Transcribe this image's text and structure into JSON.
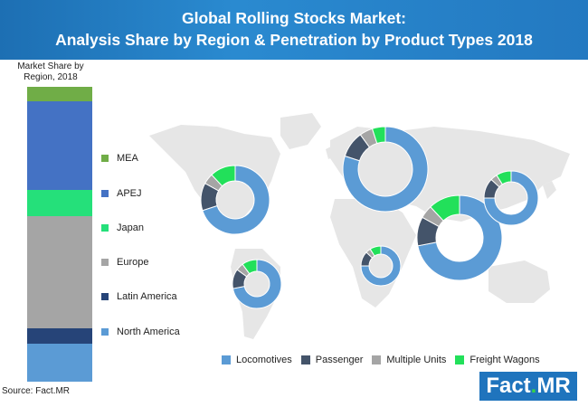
{
  "title_line1": "Global Rolling Stocks Market:",
  "title_line2": "Analysis Share by Region & Penetration by Product Types 2018",
  "source": "Source: Fact.MR",
  "logo": {
    "main": "Fact",
    "dot": ".",
    "suffix": "MR"
  },
  "colors": {
    "mea": "#70ad47",
    "apej": "#4472c4",
    "japan": "#25e07a",
    "europe": "#a5a5a5",
    "latin_america": "#264478",
    "north_america": "#5b9bd5",
    "locomotives": "#5b9bd5",
    "passenger": "#44546a",
    "multiple_units": "#a5a5a5",
    "freight_wagons": "#22e05a"
  },
  "chart_data": [
    {
      "type": "bar",
      "subtype": "100% stacked",
      "title": "Market Share by Region, 2018",
      "categories": [
        "2018"
      ],
      "series": [
        {
          "name": "North America",
          "values": [
            13
          ]
        },
        {
          "name": "Latin America",
          "values": [
            5
          ]
        },
        {
          "name": "Europe",
          "values": [
            38
          ]
        },
        {
          "name": "Japan",
          "values": [
            9
          ]
        },
        {
          "name": "APEJ",
          "values": [
            30
          ]
        },
        {
          "name": "MEA",
          "values": [
            5
          ]
        }
      ],
      "ylim": [
        0,
        100
      ],
      "legend": [
        "MEA",
        "APEJ",
        "Japan",
        "Europe",
        "Latin America",
        "North America"
      ],
      "legend_position": "right"
    },
    {
      "type": "pie",
      "subtype": "doughnuts on world map",
      "categories": [
        "Locomotives",
        "Passenger",
        "Multiple Units",
        "Freight Wagons"
      ],
      "legend_position": "bottom",
      "regions": [
        {
          "region": "North America",
          "values": [
            70,
            13,
            5,
            12
          ]
        },
        {
          "region": "Europe",
          "values": [
            80,
            10,
            5,
            5
          ]
        },
        {
          "region": "Asia Pacific",
          "values": [
            72,
            11,
            5,
            12
          ]
        },
        {
          "region": "Latin America",
          "values": [
            72,
            13,
            5,
            10
          ]
        },
        {
          "region": "Africa",
          "values": [
            75,
            12,
            4,
            9
          ]
        },
        {
          "region": "Oceania",
          "values": [
            75,
            12,
            4,
            9
          ]
        }
      ]
    }
  ]
}
